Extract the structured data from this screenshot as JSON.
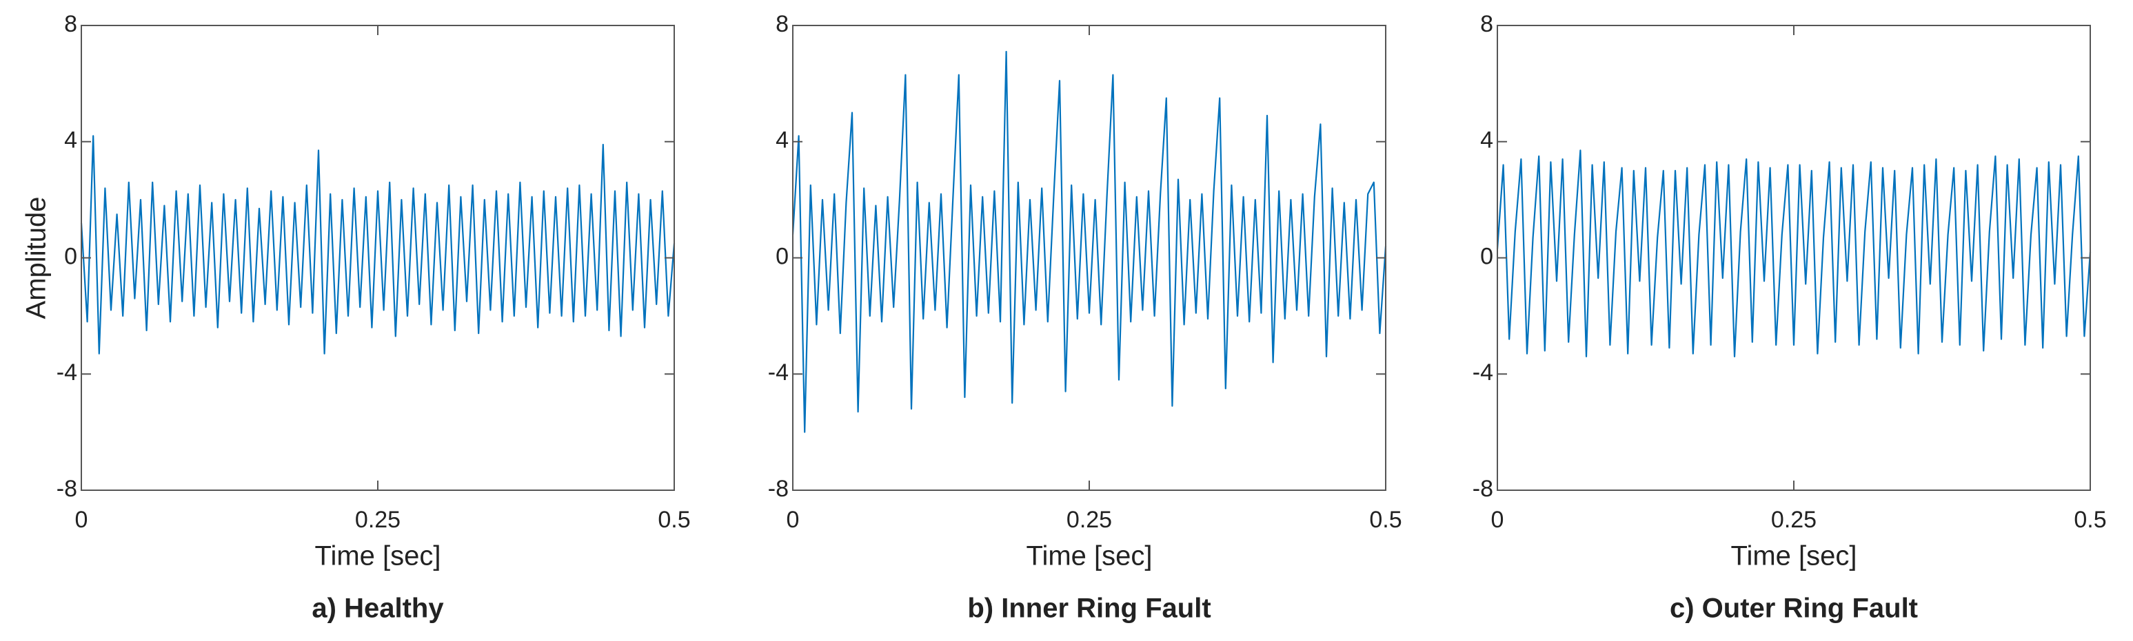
{
  "chart_data": [
    {
      "type": "line",
      "title": "a) Healthy",
      "x_label": "Time [sec]",
      "y_label": "Amplitude",
      "color": "#0072bd",
      "xlim": [
        0,
        0.5
      ],
      "ylim": [
        -8,
        8
      ],
      "xticks": [
        0,
        0.25,
        0.5
      ],
      "yticks": [
        -8,
        -4,
        0,
        4,
        8
      ],
      "x": [
        0,
        0.005,
        0.01,
        0.015,
        0.02,
        0.025,
        0.03,
        0.035,
        0.04,
        0.045,
        0.05,
        0.055,
        0.06,
        0.065,
        0.07,
        0.075,
        0.08,
        0.085,
        0.09,
        0.095,
        0.1,
        0.105,
        0.11,
        0.115,
        0.12,
        0.125,
        0.13,
        0.135,
        0.14,
        0.145,
        0.15,
        0.155,
        0.16,
        0.165,
        0.17,
        0.175,
        0.18,
        0.185,
        0.19,
        0.195,
        0.2,
        0.205,
        0.21,
        0.215,
        0.22,
        0.225,
        0.23,
        0.235,
        0.24,
        0.245,
        0.25,
        0.255,
        0.26,
        0.265,
        0.27,
        0.275,
        0.28,
        0.285,
        0.29,
        0.295,
        0.3,
        0.305,
        0.31,
        0.315,
        0.32,
        0.325,
        0.33,
        0.335,
        0.34,
        0.345,
        0.35,
        0.355,
        0.36,
        0.365,
        0.37,
        0.375,
        0.38,
        0.385,
        0.39,
        0.395,
        0.4,
        0.405,
        0.41,
        0.415,
        0.42,
        0.425,
        0.43,
        0.435,
        0.44,
        0.445,
        0.45,
        0.455,
        0.46,
        0.465,
        0.47,
        0.475,
        0.48,
        0.485,
        0.49,
        0.495,
        0.5
      ],
      "values": [
        1.2,
        -2.2,
        4.2,
        -3.3,
        2.4,
        -1.8,
        1.5,
        -2.0,
        2.6,
        -1.4,
        2.0,
        -2.5,
        2.6,
        -1.6,
        1.8,
        -2.2,
        2.3,
        -1.5,
        2.2,
        -2.0,
        2.5,
        -1.7,
        1.9,
        -2.4,
        2.2,
        -1.5,
        2.0,
        -1.9,
        2.4,
        -2.2,
        1.7,
        -1.6,
        2.3,
        -1.8,
        2.1,
        -2.3,
        1.9,
        -1.7,
        2.5,
        -1.9,
        3.7,
        -3.3,
        2.2,
        -2.6,
        2.0,
        -2.0,
        2.4,
        -1.7,
        2.1,
        -2.4,
        2.3,
        -1.8,
        2.6,
        -2.7,
        2.0,
        -2.0,
        2.4,
        -1.6,
        2.2,
        -2.3,
        1.9,
        -1.8,
        2.5,
        -2.5,
        2.1,
        -1.5,
        2.5,
        -2.6,
        2.0,
        -1.8,
        2.3,
        -2.2,
        2.2,
        -2.0,
        2.6,
        -1.7,
        2.1,
        -2.4,
        2.3,
        -1.9,
        2.1,
        -2.0,
        2.4,
        -2.2,
        2.5,
        -2.0,
        2.2,
        -1.8,
        3.9,
        -2.5,
        2.3,
        -2.7,
        2.6,
        -1.8,
        2.2,
        -2.4,
        2.0,
        -1.6,
        2.3,
        -2.0,
        0.5
      ]
    },
    {
      "type": "line",
      "title": "b) Inner Ring Fault",
      "x_label": "Time [sec]",
      "color": "#0072bd",
      "xlim": [
        0,
        0.5
      ],
      "ylim": [
        -8,
        8
      ],
      "xticks": [
        0,
        0.25,
        0.5
      ],
      "yticks": [
        -8,
        -4,
        0,
        4,
        8
      ],
      "x": [
        0,
        0.005,
        0.01,
        0.015,
        0.02,
        0.025,
        0.03,
        0.035,
        0.04,
        0.045,
        0.05,
        0.055,
        0.06,
        0.065,
        0.07,
        0.075,
        0.08,
        0.085,
        0.09,
        0.095,
        0.1,
        0.105,
        0.11,
        0.115,
        0.12,
        0.125,
        0.13,
        0.135,
        0.14,
        0.145,
        0.15,
        0.155,
        0.16,
        0.165,
        0.17,
        0.175,
        0.18,
        0.185,
        0.19,
        0.195,
        0.2,
        0.205,
        0.21,
        0.215,
        0.22,
        0.225,
        0.23,
        0.235,
        0.24,
        0.245,
        0.25,
        0.255,
        0.26,
        0.265,
        0.27,
        0.275,
        0.28,
        0.285,
        0.29,
        0.295,
        0.3,
        0.305,
        0.31,
        0.315,
        0.32,
        0.325,
        0.33,
        0.335,
        0.34,
        0.345,
        0.35,
        0.355,
        0.36,
        0.365,
        0.37,
        0.375,
        0.38,
        0.385,
        0.39,
        0.395,
        0.4,
        0.405,
        0.41,
        0.415,
        0.42,
        0.425,
        0.43,
        0.435,
        0.44,
        0.445,
        0.45,
        0.455,
        0.46,
        0.465,
        0.47,
        0.475,
        0.48,
        0.485,
        0.49,
        0.495,
        0.5
      ],
      "values": [
        0.8,
        4.2,
        -6.0,
        2.5,
        -2.3,
        2.0,
        -1.8,
        2.2,
        -2.6,
        1.9,
        5.0,
        -5.3,
        2.4,
        -2.0,
        1.8,
        -2.2,
        2.1,
        -1.7,
        2.0,
        6.3,
        -5.2,
        2.6,
        -2.1,
        1.9,
        -1.8,
        2.2,
        -2.4,
        2.0,
        6.3,
        -4.8,
        2.5,
        -2.0,
        2.1,
        -1.9,
        2.3,
        -2.2,
        7.1,
        -5.0,
        2.6,
        -2.3,
        2.0,
        -1.8,
        2.4,
        -2.2,
        2.1,
        6.1,
        -4.6,
        2.5,
        -2.1,
        2.2,
        -1.9,
        2.0,
        -2.3,
        2.2,
        6.3,
        -4.2,
        2.6,
        -2.2,
        2.1,
        -1.8,
        2.3,
        -2.0,
        2.2,
        5.5,
        -5.1,
        2.7,
        -2.3,
        2.0,
        -1.9,
        2.2,
        -2.1,
        2.3,
        5.5,
        -4.5,
        2.5,
        -2.0,
        2.1,
        -2.2,
        2.0,
        -1.9,
        4.9,
        -3.6,
        2.3,
        -2.1,
        2.0,
        -1.8,
        2.2,
        -2.0,
        2.1,
        4.6,
        -3.4,
        2.4,
        -2.0,
        1.9,
        -2.1,
        2.0,
        -1.8,
        2.2,
        2.6,
        -2.6,
        0.4
      ]
    },
    {
      "type": "line",
      "title": "c) Outer Ring Fault",
      "x_label": "Time [sec]",
      "color": "#0072bd",
      "xlim": [
        0,
        0.5
      ],
      "ylim": [
        -8,
        8
      ],
      "xticks": [
        0,
        0.25,
        0.5
      ],
      "yticks": [
        -8,
        -4,
        0,
        4,
        8
      ],
      "x": [
        0,
        0.005,
        0.01,
        0.015,
        0.02,
        0.025,
        0.03,
        0.035,
        0.04,
        0.045,
        0.05,
        0.055,
        0.06,
        0.065,
        0.07,
        0.075,
        0.08,
        0.085,
        0.09,
        0.095,
        0.1,
        0.105,
        0.11,
        0.115,
        0.12,
        0.125,
        0.13,
        0.135,
        0.14,
        0.145,
        0.15,
        0.155,
        0.16,
        0.165,
        0.17,
        0.175,
        0.18,
        0.185,
        0.19,
        0.195,
        0.2,
        0.205,
        0.21,
        0.215,
        0.22,
        0.225,
        0.23,
        0.235,
        0.24,
        0.245,
        0.25,
        0.255,
        0.26,
        0.265,
        0.27,
        0.275,
        0.28,
        0.285,
        0.29,
        0.295,
        0.3,
        0.305,
        0.31,
        0.315,
        0.32,
        0.325,
        0.33,
        0.335,
        0.34,
        0.345,
        0.35,
        0.355,
        0.36,
        0.365,
        0.37,
        0.375,
        0.38,
        0.385,
        0.39,
        0.395,
        0.4,
        0.405,
        0.41,
        0.415,
        0.42,
        0.425,
        0.43,
        0.435,
        0.44,
        0.445,
        0.45,
        0.455,
        0.46,
        0.465,
        0.47,
        0.475,
        0.48,
        0.485,
        0.49,
        0.495,
        0.5
      ],
      "values": [
        0.3,
        3.2,
        -2.8,
        0.9,
        3.4,
        -3.3,
        0.7,
        3.5,
        -3.2,
        3.3,
        -0.8,
        3.4,
        -2.9,
        0.8,
        3.7,
        -3.4,
        3.2,
        -0.7,
        3.3,
        -3.0,
        0.9,
        3.1,
        -3.3,
        3.0,
        -0.8,
        3.1,
        -3.0,
        0.7,
        3.0,
        -3.1,
        3.0,
        -0.9,
        3.1,
        -3.3,
        0.8,
        3.2,
        -3.0,
        3.3,
        -0.7,
        3.2,
        -3.4,
        0.9,
        3.4,
        -2.9,
        3.3,
        -0.8,
        3.1,
        -3.0,
        0.8,
        3.2,
        -3.0,
        3.2,
        -0.9,
        3.0,
        -3.3,
        0.7,
        3.3,
        -2.9,
        3.1,
        -0.8,
        3.2,
        -3.0,
        0.9,
        3.3,
        -2.8,
        3.1,
        -0.7,
        3.0,
        -3.1,
        0.8,
        3.1,
        -3.3,
        3.2,
        -0.9,
        3.4,
        -2.9,
        0.8,
        3.1,
        -3.0,
        3.0,
        -0.8,
        3.2,
        -3.2,
        0.9,
        3.5,
        -2.8,
        3.2,
        -0.7,
        3.4,
        -3.0,
        0.8,
        3.1,
        -3.1,
        3.3,
        -0.9,
        3.2,
        -2.7,
        0.8,
        3.5,
        -2.7,
        0.2
      ]
    }
  ]
}
